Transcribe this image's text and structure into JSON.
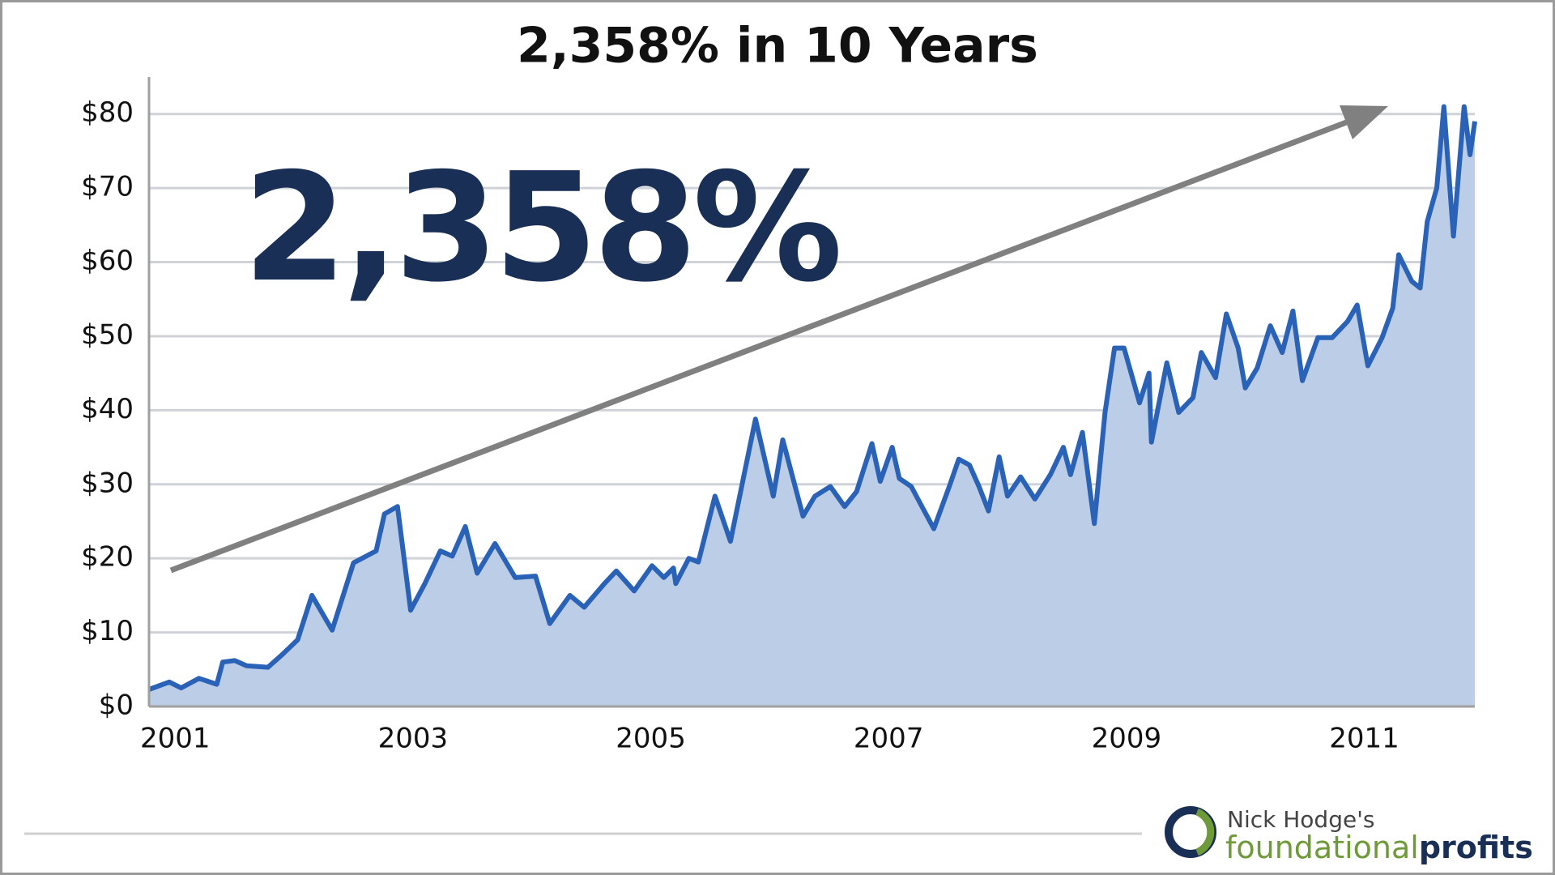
{
  "chart_data": {
    "type": "area",
    "title": "2,358% in 10 Years",
    "annotation": "2,358%",
    "brand": {
      "owner": "Nick Hodge's",
      "name_part1": "foundational",
      "name_part2": "profits"
    },
    "color": "#2a62b8",
    "fill": "#bccde8",
    "grid": true,
    "xlim": [
      2000.78,
      2011.93
    ],
    "xticks": [
      2001,
      2003,
      2005,
      2007,
      2009,
      2011
    ],
    "ylim": [
      0,
      85
    ],
    "yticks": [
      {
        "value": 0,
        "label": "$0"
      },
      {
        "value": 10,
        "label": "$10"
      },
      {
        "value": 20,
        "label": "$20"
      },
      {
        "value": 30,
        "label": "$30"
      },
      {
        "value": 40,
        "label": "$40"
      },
      {
        "value": 50,
        "label": "$50"
      },
      {
        "value": 60,
        "label": "$60"
      },
      {
        "value": 70,
        "label": "$70"
      },
      {
        "value": 80,
        "label": "$80"
      }
    ],
    "x": [
      2000.78,
      2000.95,
      2001.05,
      2001.2,
      2001.35,
      2001.4,
      2001.5,
      2001.6,
      2001.78,
      2001.9,
      2002.03,
      2002.15,
      2002.32,
      2002.5,
      2002.69,
      2002.76,
      2002.87,
      2002.98,
      2003.1,
      2003.23,
      2003.33,
      2003.44,
      2003.54,
      2003.69,
      2003.86,
      2004.03,
      2004.15,
      2004.32,
      2004.44,
      2004.61,
      2004.71,
      2004.86,
      2005.01,
      2005.11,
      2005.19,
      2005.21,
      2005.32,
      2005.4,
      2005.54,
      2005.67,
      2005.79,
      2005.88,
      2006.03,
      2006.11,
      2006.28,
      2006.38,
      2006.51,
      2006.63,
      2006.73,
      2006.86,
      2006.93,
      2007.03,
      2007.09,
      2007.19,
      2007.38,
      2007.51,
      2007.59,
      2007.68,
      2007.76,
      2007.84,
      2007.93,
      2008.0,
      2008.11,
      2008.23,
      2008.36,
      2008.47,
      2008.53,
      2008.63,
      2008.73,
      2008.82,
      2008.9,
      2008.98,
      2009.11,
      2009.19,
      2009.21,
      2009.34,
      2009.44,
      2009.56,
      2009.63,
      2009.75,
      2009.84,
      2009.94,
      2010.0,
      2010.1,
      2010.21,
      2010.31,
      2010.4,
      2010.48,
      2010.61,
      2010.73,
      2010.86,
      2010.94,
      2011.03,
      2011.15,
      2011.24,
      2011.29,
      2011.4,
      2011.47,
      2011.53,
      2011.61,
      2011.67,
      2011.75,
      2011.84,
      2011.89,
      2011.93
    ],
    "values": [
      2.3,
      3.3,
      2.5,
      3.8,
      3,
      6,
      6.2,
      5.5,
      5.3,
      7,
      9,
      15,
      10.3,
      19.4,
      21,
      26,
      27,
      13,
      16.6,
      21,
      20.3,
      24.3,
      18,
      22,
      17.4,
      17.6,
      11.2,
      15,
      13.4,
      16.6,
      18.3,
      15.6,
      19,
      17.4,
      18.7,
      16.6,
      20,
      19.5,
      28.4,
      22.3,
      31.7,
      38.8,
      28.4,
      36,
      25.7,
      28.4,
      29.7,
      27,
      29,
      35.5,
      30.4,
      35,
      30.8,
      29.7,
      24,
      29.7,
      33.4,
      32.6,
      29.7,
      26.4,
      33.7,
      28.4,
      31,
      28,
      31.3,
      35,
      31.3,
      37,
      24.7,
      39.7,
      48.4,
      48.4,
      41,
      45,
      35.7,
      46.4,
      39.7,
      41.7,
      47.8,
      44.4,
      53,
      48.4,
      43,
      45.7,
      51.4,
      47.8,
      53.4,
      44,
      49.8,
      49.8,
      52,
      54.2,
      46,
      49.8,
      53.8,
      61,
      57.4,
      56.5,
      65.5,
      70,
      81,
      63.5,
      81,
      74.5,
      79
    ]
  }
}
